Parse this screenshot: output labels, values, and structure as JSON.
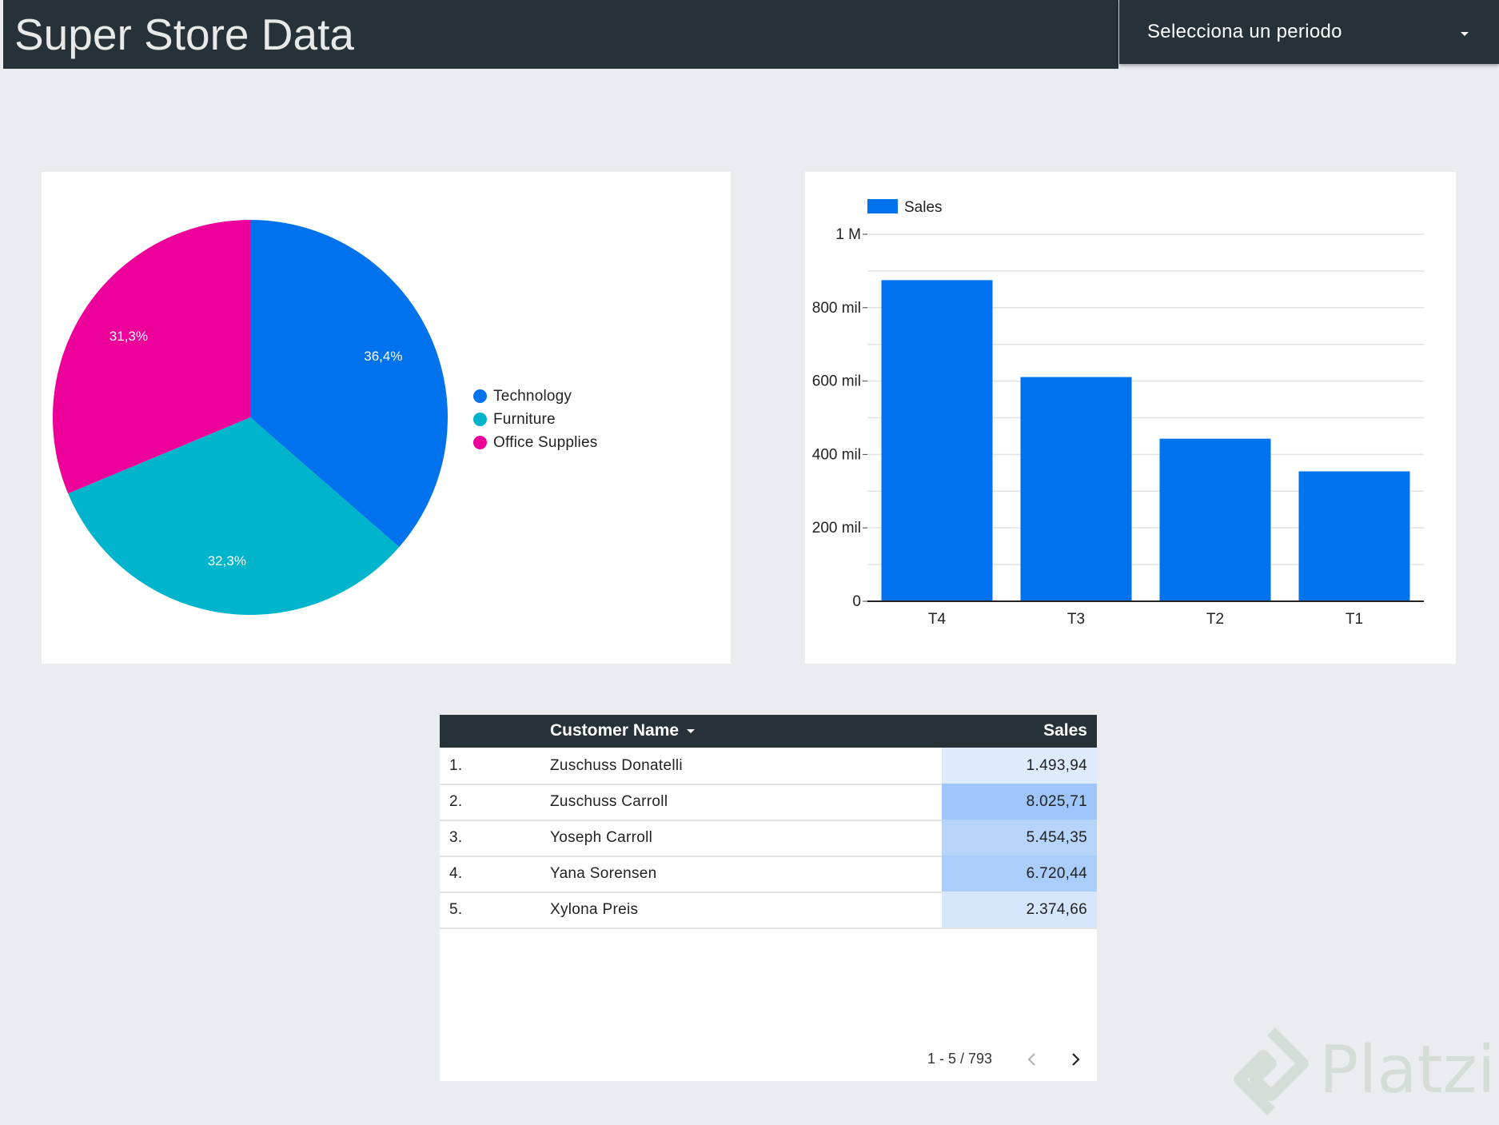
{
  "header": {
    "title": "Super Store Data"
  },
  "period_selector": {
    "label": "Selecciona un periodo"
  },
  "colors": {
    "technology": "#0072ed",
    "furniture": "#00b4cb",
    "office_supplies": "#ec0099",
    "bar": "#0072ed",
    "header_bg": "#263238"
  },
  "chart_data": [
    {
      "type": "pie",
      "categories": [
        "Technology",
        "Furniture",
        "Office Supplies"
      ],
      "values": [
        36.4,
        32.3,
        31.3
      ],
      "labels": [
        "36,4%",
        "32,3%",
        "31,3%"
      ],
      "legend_position": "right"
    },
    {
      "type": "bar",
      "categories": [
        "T4",
        "T3",
        "T2",
        "T1"
      ],
      "series": [
        {
          "name": "Sales",
          "values": [
            875000,
            611000,
            443000,
            354000
          ]
        }
      ],
      "ylim": [
        0,
        1000000
      ],
      "yticks": [
        0,
        200000,
        400000,
        600000,
        800000,
        1000000
      ],
      "ytick_labels": [
        "0",
        "200 mil",
        "400 mil",
        "600 mil",
        "800 mil",
        "1 M"
      ],
      "legend_position": "top-left",
      "grid": true
    }
  ],
  "table": {
    "columns": {
      "name": "Customer Name",
      "sales": "Sales"
    },
    "rows": [
      {
        "index": "1.",
        "name": "Zuschuss Donatelli",
        "sales": "1.493,94",
        "value": 1493.94
      },
      {
        "index": "2.",
        "name": "Zuschuss Carroll",
        "sales": "8.025,71",
        "value": 8025.71
      },
      {
        "index": "3.",
        "name": "Yoseph Carroll",
        "sales": "5.454,35",
        "value": 5454.35
      },
      {
        "index": "4.",
        "name": "Yana Sorensen",
        "sales": "6.720,44",
        "value": 6720.44
      },
      {
        "index": "5.",
        "name": "Xylona Preis",
        "sales": "2.374,66",
        "value": 2374.66
      }
    ],
    "pagination": "1 - 5 / 793"
  },
  "watermark": {
    "text": "Platzi"
  },
  "icons": {
    "prev": "chevron-left-icon",
    "next": "chevron-right-icon",
    "caret": "caret-down-icon"
  }
}
